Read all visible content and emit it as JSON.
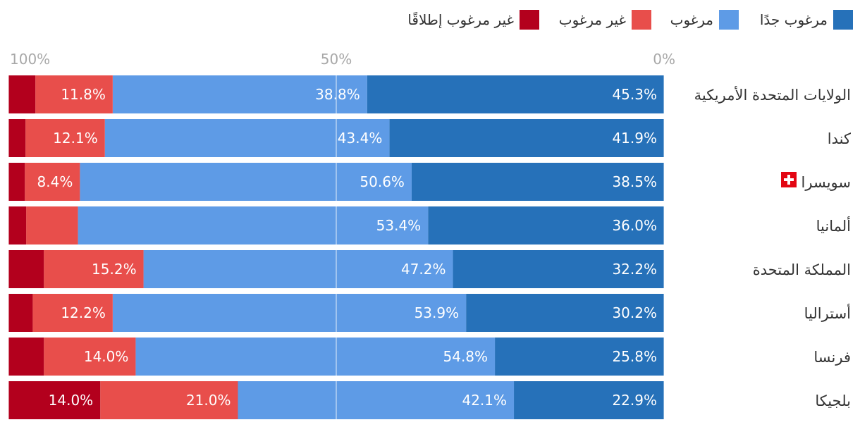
{
  "chart_data": {
    "type": "bar",
    "orientation": "horizontal-stacked-100",
    "direction": "rtl",
    "title": "",
    "xlabel": "",
    "ylabel": "",
    "xlim": [
      0,
      100
    ],
    "x_ticks": [
      "0%",
      "50%",
      "100%"
    ],
    "grid": true,
    "legend_position": "top-right",
    "categories": [
      "الولايات المتحدة الأمريكية",
      "كندا",
      "سويسرا",
      "ألمانيا",
      "المملكة المتحدة",
      "أستراليا",
      "فرنسا",
      "بلجيكا"
    ],
    "series": [
      {
        "name": "مرغوب جدًا",
        "color": "#2671b9",
        "values": [
          45.3,
          41.9,
          38.5,
          36.0,
          32.2,
          30.2,
          25.8,
          22.9
        ],
        "labels": [
          "45.3%",
          "41.9%",
          "38.5%",
          "36.0%",
          "32.2%",
          "30.2%",
          "25.8%",
          "22.9%"
        ]
      },
      {
        "name": "مرغوب",
        "color": "#5e9be6",
        "values": [
          38.8,
          43.4,
          50.6,
          53.4,
          47.2,
          53.9,
          54.8,
          42.1
        ],
        "labels": [
          "38.8%",
          "43.4%",
          "50.6%",
          "53.4%",
          "47.2%",
          "53.9%",
          "54.8%",
          "42.1%"
        ]
      },
      {
        "name": "غير مرغوب",
        "color": "#e84e4b",
        "values": [
          11.8,
          12.1,
          8.4,
          7.9,
          15.2,
          12.2,
          14.0,
          21.0
        ],
        "labels": [
          "11.8%",
          "12.1%",
          "8.4%",
          "",
          "15.2%",
          "12.2%",
          "14.0%",
          "21.0%"
        ]
      },
      {
        "name": "غير مرغوب إطلاقًا",
        "color": "#b3001d",
        "values": [
          4.1,
          2.6,
          2.5,
          2.7,
          5.4,
          3.7,
          5.4,
          14.0
        ],
        "labels": [
          "",
          "",
          "",
          "",
          "",
          "",
          "",
          "14.0%"
        ]
      }
    ],
    "annotations": {
      "swiss_flag_row": "سويسرا"
    }
  }
}
